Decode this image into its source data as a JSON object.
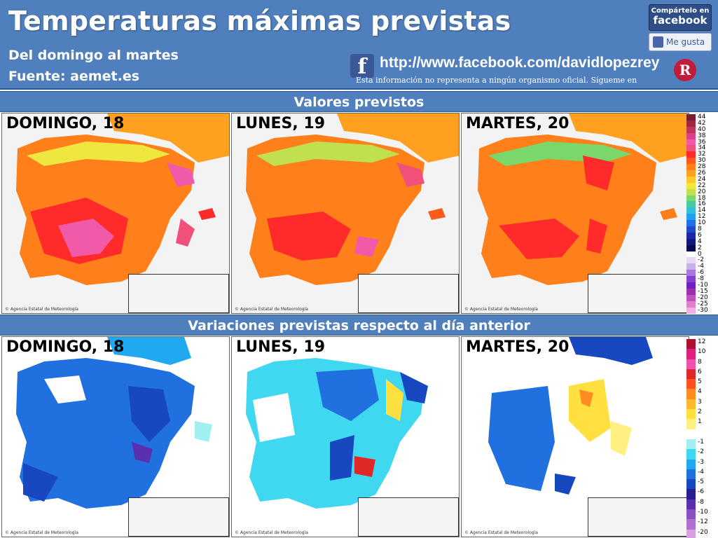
{
  "header": {
    "title": "Temperaturas máximas previstas",
    "subtitle": "Del domingo al martes",
    "source": "Fuente: aemet.es",
    "facebook_url": "http://www.facebook.com/davidlopezrey",
    "disclaimer": "Esta información no representa a ningún organismo oficial. Sígueme en",
    "share_line1": "Compártelo en",
    "share_line2": "facebook",
    "like_label": "Me gusta",
    "brand_letter": "R"
  },
  "sections": {
    "forecast": "Valores previstos",
    "variation": "Variaciones previstas respecto al día anterior"
  },
  "panels": {
    "days": [
      "DOMINGO, 18",
      "LUNES, 19",
      "MARTES, 20"
    ],
    "credit": "© Agencia Estatal de Meteorología"
  },
  "legend_values": {
    "labels": [
      "44",
      "42",
      "40",
      "38",
      "36",
      "34",
      "32",
      "30",
      "28",
      "26",
      "24",
      "22",
      "20",
      "18",
      "16",
      "14",
      "12",
      "10",
      "8",
      "6",
      "4",
      "2",
      "0",
      "-2",
      "-4",
      "-6",
      "-8",
      "-10",
      "-15",
      "-20",
      "-25",
      "-30"
    ],
    "colors": [
      "#7a1d2e",
      "#a02642",
      "#c4345a",
      "#e0408a",
      "#f05aa8",
      "#f0507a",
      "#ff2a2a",
      "#ff5a1e",
      "#ff7f1a",
      "#ffa020",
      "#ffc82a",
      "#f0e640",
      "#c0e050",
      "#7ad86a",
      "#4ac8a0",
      "#30c0d8",
      "#20a0f0",
      "#2070e8",
      "#1e4ad0",
      "#1a28a8",
      "#101880",
      "#060a50",
      "#ffffff",
      "#e6d8f0",
      "#c8b0e8",
      "#a878e0",
      "#8840d0",
      "#7020c0",
      "#a030b0",
      "#c050c0",
      "#e080d0",
      "#f0b0e0"
    ]
  },
  "legend_variation": {
    "labels": [
      "12",
      "10",
      "8",
      "6",
      "5",
      "4",
      "3",
      "2",
      "1",
      "",
      "-1",
      "-2",
      "-3",
      "-4",
      "-5",
      "-6",
      "-8",
      "-10",
      "-12",
      "-20"
    ],
    "colors": [
      "#b01030",
      "#e0207a",
      "#f050b0",
      "#e02828",
      "#ff5020",
      "#ff8c20",
      "#ffb830",
      "#ffe040",
      "#fff080",
      "#ffffff",
      "#a0f0f0",
      "#40d8f0",
      "#20a8f0",
      "#2070e0",
      "#1848c0",
      "#2a1e90",
      "#5a30b0",
      "#8850c0",
      "#b070d0",
      "#d8a0e0"
    ]
  },
  "colors": {
    "header_blue": "#4f7fbd",
    "facebook_blue": "#3b5998"
  }
}
